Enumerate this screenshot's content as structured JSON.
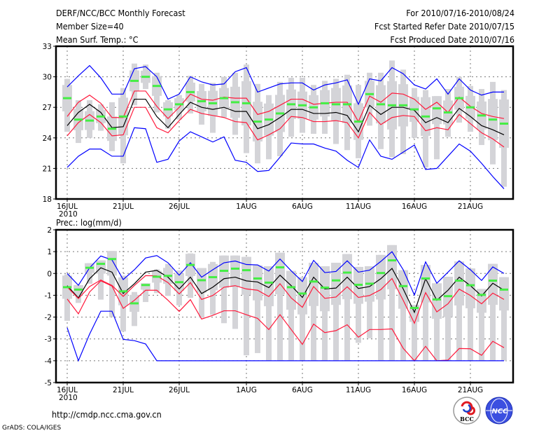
{
  "header": {
    "title": "DERF/NCC/BCC Monthly Forecast",
    "member_size": "Member Size=40",
    "period": "For 2010/07/16-2010/08/24",
    "started": "Fcst Started Refer Date 2010/07/15",
    "produced": "Fcst Produced Date 2010/07/16"
  },
  "footer": {
    "url": "http://cmdp.ncc.cma.gov.cn",
    "grads": "GrADS: COLA/IGES",
    "logo_bcc": "BCC",
    "logo_ncc": "NCC"
  },
  "colors": {
    "mean": "#000000",
    "spread": "#ff1a3c",
    "extreme": "#0000ff",
    "median": "#44ee44",
    "range": "#d4d4d8",
    "grid": "#777777"
  },
  "chart_data": [
    {
      "type": "line",
      "title": "Mean Surf. Temp.: °C",
      "ylim": [
        18,
        33
      ],
      "yticks": [
        18,
        21,
        24,
        27,
        30,
        33
      ],
      "xtick_labels": [
        {
          "day": 0,
          "label": "16JUL"
        },
        {
          "day": 5,
          "label": "21JUL"
        },
        {
          "day": 10,
          "label": "26JUL"
        },
        {
          "day": 16,
          "label": "1AUG"
        },
        {
          "day": 21,
          "label": "6AUG"
        },
        {
          "day": 26,
          "label": "11AUG"
        },
        {
          "day": 31,
          "label": "16AUG"
        },
        {
          "day": 36,
          "label": "21AUG"
        }
      ],
      "year_label": "2010",
      "n_days": 40,
      "grid": true,
      "series": [
        {
          "name": "ensemble-mean",
          "color": "mean",
          "values": [
            25.2,
            26.5,
            27.3,
            26.5,
            25.0,
            25.1,
            27.8,
            27.8,
            26.1,
            25.0,
            26.3,
            27.5,
            27.0,
            26.8,
            27.0,
            26.6,
            26.6,
            24.9,
            25.3,
            26.0,
            26.8,
            26.8,
            26.4,
            26.4,
            26.5,
            26.2,
            24.6,
            27.2,
            26.3,
            27.0,
            27.0,
            26.7,
            25.5,
            26.0,
            25.5,
            26.9,
            26.1,
            25.2,
            24.8,
            24.3
          ]
        },
        {
          "name": "upper-spread",
          "color": "spread",
          "values": [
            26.1,
            27.5,
            28.2,
            27.4,
            26.0,
            26.0,
            28.6,
            28.6,
            27.1,
            25.9,
            27.0,
            28.3,
            27.8,
            27.7,
            28.0,
            27.9,
            27.9,
            26.3,
            26.6,
            27.2,
            27.8,
            27.8,
            27.3,
            27.4,
            27.5,
            27.5,
            25.6,
            28.1,
            27.5,
            28.4,
            28.3,
            27.8,
            26.8,
            27.5,
            26.5,
            28.0,
            27.1,
            26.4,
            26.1,
            25.9
          ]
        },
        {
          "name": "lower-spread",
          "color": "spread",
          "values": [
            24.2,
            25.5,
            26.3,
            25.5,
            24.2,
            24.3,
            27.0,
            27.0,
            25.0,
            24.5,
            25.7,
            26.8,
            26.4,
            26.2,
            26.0,
            25.6,
            25.5,
            23.8,
            24.3,
            24.9,
            26.1,
            26.0,
            25.6,
            25.6,
            25.7,
            25.5,
            24.0,
            26.5,
            25.3,
            26.0,
            26.2,
            26.1,
            24.7,
            25.0,
            24.8,
            26.3,
            25.4,
            24.5,
            23.9,
            23.1
          ]
        },
        {
          "name": "upper-extreme",
          "color": "extreme",
          "values": [
            29.0,
            30.1,
            31.1,
            29.9,
            28.3,
            28.3,
            30.8,
            31.0,
            30.0,
            27.8,
            28.3,
            30.0,
            29.5,
            29.2,
            29.3,
            30.5,
            30.9,
            28.5,
            28.9,
            29.3,
            29.4,
            29.4,
            28.7,
            29.2,
            29.4,
            29.7,
            27.3,
            29.8,
            29.6,
            30.9,
            30.3,
            29.2,
            28.8,
            29.8,
            28.3,
            29.8,
            28.7,
            28.2,
            28.5,
            28.5
          ]
        },
        {
          "name": "lower-extreme",
          "color": "extreme",
          "values": [
            21.1,
            22.2,
            22.9,
            22.9,
            22.2,
            22.2,
            25.0,
            24.9,
            21.6,
            21.9,
            23.7,
            24.6,
            24.1,
            23.6,
            24.1,
            21.8,
            21.6,
            20.7,
            20.8,
            22.1,
            23.5,
            23.4,
            23.4,
            23.0,
            22.7,
            21.8,
            21.1,
            23.8,
            22.2,
            21.9,
            22.6,
            23.3,
            20.9,
            21.0,
            22.2,
            23.4,
            22.7,
            21.5,
            20.2,
            19.0
          ]
        }
      ],
      "median": [
        27.9,
        25.8,
        25.7,
        26.1,
        24.9,
        26.1,
        29.6,
        30.0,
        29.1,
        26.8,
        27.3,
        28.5,
        27.6,
        27.4,
        27.9,
        27.5,
        27.4,
        25.6,
        25.8,
        26.4,
        27.3,
        27.2,
        27.0,
        27.4,
        27.3,
        27.3,
        25.6,
        28.3,
        27.3,
        27.2,
        27.2,
        26.8,
        26.1,
        26.9,
        26.5,
        27.9,
        27.0,
        26.2,
        25.8,
        25.4
      ],
      "range_hi": [
        29.8,
        27.7,
        27.7,
        27.3,
        27.5,
        28.9,
        31.3,
        31.2,
        30.4,
        27.7,
        28.2,
        30.1,
        29.3,
        29.4,
        30.0,
        30.4,
        31.2,
        29.3,
        28.2,
        29.5,
        29.9,
        29.9,
        29.2,
        29.6,
        29.8,
        30.2,
        29.2,
        30.4,
        30.4,
        31.6,
        30.7,
        28.9,
        28.7,
        28.1,
        28.8,
        30.0,
        29.1,
        28.8,
        29.5,
        28.7
      ],
      "range_lo": [
        24.6,
        23.5,
        24.0,
        24.7,
        22.7,
        21.5,
        27.2,
        28.8,
        26.5,
        24.9,
        25.8,
        26.4,
        25.3,
        24.5,
        26.0,
        24.3,
        22.5,
        21.5,
        21.9,
        22.2,
        24.1,
        24.5,
        24.4,
        24.4,
        23.4,
        22.8,
        22.0,
        25.2,
        22.9,
        22.1,
        22.4,
        24.0,
        21.1,
        21.9,
        24.1,
        25.5,
        24.6,
        23.3,
        21.4,
        19.2
      ]
    },
    {
      "type": "line",
      "title": "Prec.: log(mm/d)",
      "ylim": [
        -5,
        2
      ],
      "yticks": [
        -5,
        -4,
        -3,
        -2,
        -1,
        0,
        1,
        2
      ],
      "xtick_labels": [
        {
          "day": 0,
          "label": "16JUL"
        },
        {
          "day": 5,
          "label": "21JUL"
        },
        {
          "day": 10,
          "label": "26JUL"
        },
        {
          "day": 16,
          "label": "1AUG"
        },
        {
          "day": 21,
          "label": "6AUG"
        },
        {
          "day": 26,
          "label": "11AUG"
        },
        {
          "day": 31,
          "label": "16AUG"
        },
        {
          "day": 36,
          "label": "21AUG"
        }
      ],
      "year_label": "2010",
      "n_days": 40,
      "grid": true,
      "series": [
        {
          "name": "ensemble-mean",
          "color": "mean",
          "values": [
            -0.56,
            -1.12,
            -0.24,
            0.26,
            0.06,
            -0.92,
            -0.47,
            0.06,
            0.14,
            -0.17,
            -0.71,
            -0.17,
            -0.92,
            -0.63,
            -0.24,
            -0.17,
            -0.34,
            -0.39,
            -0.65,
            -0.08,
            -0.56,
            -1.1,
            -0.17,
            -0.71,
            -0.67,
            -0.17,
            -0.69,
            -0.6,
            -0.24,
            0.23,
            -0.71,
            -1.78,
            -0.24,
            -1.23,
            -0.77,
            -0.17,
            -0.56,
            -1.03,
            -0.45,
            -0.77
          ]
        },
        {
          "name": "upper-spread",
          "color": "spread",
          "values": [
            -0.62,
            -1.15,
            -0.6,
            -0.3,
            -0.55,
            -1.05,
            -0.55,
            -0.1,
            -0.11,
            -0.42,
            -0.94,
            -0.42,
            -1.19,
            -1.01,
            -0.63,
            -0.56,
            -0.71,
            -0.77,
            -1.06,
            -0.47,
            -1.12,
            -1.55,
            -0.6,
            -1.14,
            -1.08,
            -0.61,
            -1.1,
            -1.01,
            -0.74,
            -0.23,
            -1.23,
            -2.28,
            -0.88,
            -1.76,
            -1.39,
            -0.72,
            -1.01,
            -1.39,
            -0.9,
            -1.19
          ]
        },
        {
          "name": "lower-spread",
          "color": "spread",
          "values": [
            -1.17,
            -1.85,
            -0.85,
            -0.34,
            -0.58,
            -1.6,
            -1.23,
            -0.77,
            -0.77,
            -1.23,
            -1.74,
            -1.2,
            -2.09,
            -1.92,
            -1.71,
            -1.71,
            -1.89,
            -2.06,
            -2.57,
            -1.89,
            -2.57,
            -3.25,
            -2.32,
            -2.71,
            -2.62,
            -2.35,
            -2.92,
            -2.57,
            -2.57,
            -2.54,
            -3.43,
            -4.0,
            -3.34,
            -4.0,
            -3.97,
            -3.44,
            -3.45,
            -3.75,
            -3.11,
            -3.4
          ]
        },
        {
          "name": "upper-extreme",
          "color": "extreme",
          "values": [
            0.0,
            -0.54,
            0.26,
            0.8,
            0.62,
            -0.28,
            0.17,
            0.71,
            0.82,
            0.49,
            -0.08,
            0.49,
            -0.17,
            0.17,
            0.49,
            0.57,
            0.41,
            0.39,
            0.11,
            0.66,
            0.12,
            -0.37,
            0.6,
            0.04,
            0.09,
            0.58,
            0.06,
            0.15,
            0.55,
            1.0,
            0.17,
            -0.99,
            0.53,
            -0.45,
            0.06,
            0.58,
            0.17,
            -0.32,
            0.3,
            0.0
          ]
        },
        {
          "name": "lower-extreme",
          "color": "extreme",
          "values": [
            -2.49,
            -4.0,
            -2.78,
            -1.73,
            -1.73,
            -3.02,
            -3.08,
            -3.23,
            -4.0,
            -4.0,
            -4.0,
            -4.0,
            -4.0,
            -4.0,
            -4.0,
            -4.0,
            -4.0,
            -4.0,
            -4.0,
            -4.0,
            -4.0,
            -4.0,
            -4.0,
            -4.0,
            -4.0,
            -4.0,
            -4.0,
            -4.0,
            -4.0,
            -4.0,
            -4.0,
            -4.0,
            -4.0,
            -4.0,
            -4.0,
            -4.0,
            -4.0,
            -4.0,
            -4.0,
            -4.0
          ]
        }
      ],
      "median": [
        -0.63,
        -0.74,
        0.26,
        0.44,
        0.66,
        -0.82,
        -1.37,
        -0.53,
        -0.15,
        -0.11,
        -0.4,
        0.39,
        -0.31,
        -0.17,
        0.12,
        0.22,
        0.15,
        -0.23,
        -0.42,
        0.28,
        -0.63,
        -0.92,
        -0.37,
        -0.65,
        -0.32,
        0.04,
        -0.52,
        -0.47,
        0.02,
        0.6,
        -0.58,
        -1.58,
        -0.23,
        -1.19,
        -1.04,
        -0.33,
        -0.54,
        -0.98,
        -0.33,
        -0.74
      ],
      "range_hi": [
        -0.04,
        -0.53,
        0.47,
        0.6,
        1.03,
        -0.1,
        -0.85,
        -0.45,
        0.19,
        0.44,
        0.14,
        0.92,
        0.25,
        0.53,
        0.82,
        0.82,
        0.76,
        0.37,
        0.33,
        0.95,
        0.12,
        -0.17,
        0.49,
        0.33,
        0.49,
        0.89,
        0.3,
        0.33,
        0.85,
        1.3,
        0.15,
        -1.44,
        0.39,
        -0.45,
        -0.15,
        0.55,
        0.23,
        -0.71,
        0.44,
        -0.17
      ],
      "range_lo": [
        -2.17,
        -1.35,
        -0.47,
        -1.2,
        -2.0,
        -2.66,
        -2.41,
        -1.31,
        -0.9,
        -1.03,
        -1.46,
        -1.12,
        -2.03,
        -1.89,
        -2.28,
        -2.54,
        -3.75,
        -3.65,
        -4.0,
        -4.0,
        -4.0,
        -4.0,
        -4.0,
        -4.0,
        -4.0,
        -4.0,
        -3.18,
        -2.97,
        -4.0,
        -4.0,
        -4.0,
        -4.0,
        -4.0,
        -4.0,
        -4.0,
        -4.0,
        -4.0,
        -4.0,
        -4.0,
        -4.0
      ]
    }
  ]
}
